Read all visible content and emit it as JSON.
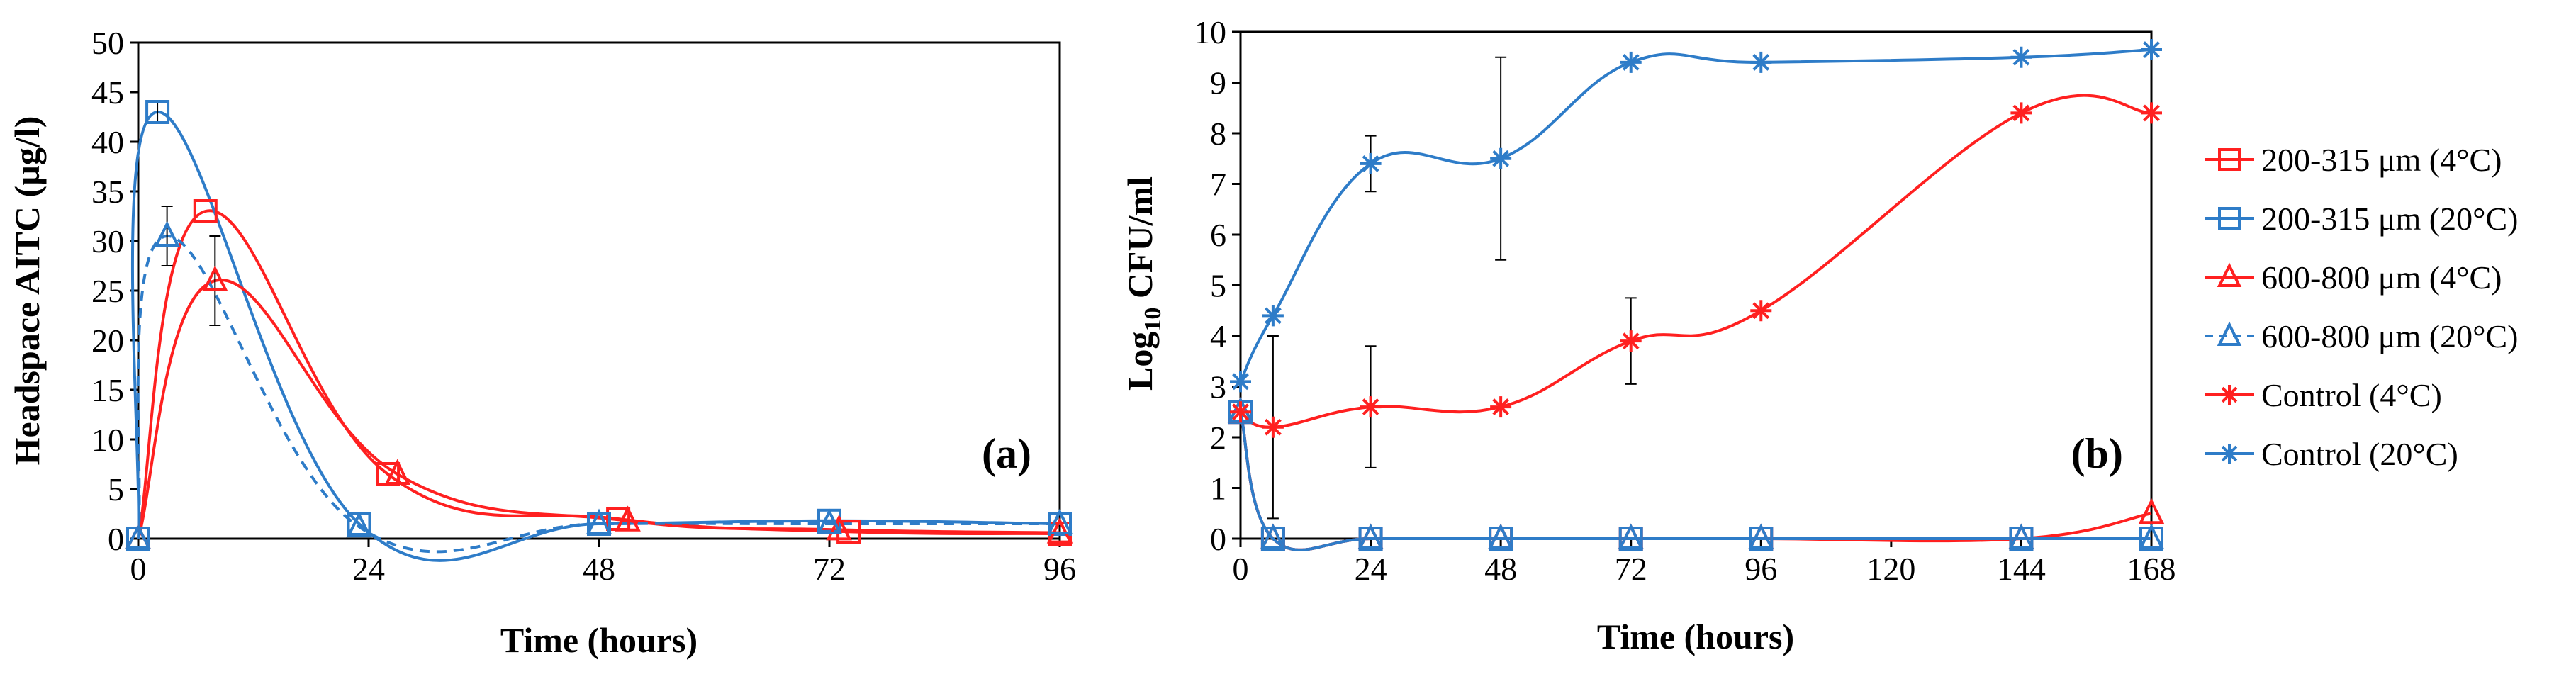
{
  "colors": {
    "red": "#ff2020",
    "blue": "#2e7cc8",
    "axis": "#000000"
  },
  "legend": {
    "labels": [
      "200-315 μm (4°C)",
      "200-315 μm (20°C)",
      "600-800 μm (4°C)",
      "600-800 μm (20°C)",
      "Control (4°C)",
      "Control (20°C)"
    ],
    "placement": "right"
  },
  "chart_data": [
    {
      "type": "line",
      "panel_label": "(a)",
      "title": "",
      "xlabel": "Time (hours)",
      "ylabel": "Headspace AITC (µg/l)",
      "xlim": [
        0,
        96
      ],
      "ylim": [
        0,
        50
      ],
      "xticks": [
        0,
        24,
        48,
        72,
        96
      ],
      "yticks": [
        0,
        5,
        10,
        15,
        20,
        25,
        30,
        35,
        40,
        45,
        50
      ],
      "xtick_labels": [
        "0",
        "24",
        "48",
        "72",
        "96"
      ],
      "ytick_labels": [
        "0",
        "5",
        "10",
        "15",
        "20",
        "25",
        "30",
        "35",
        "40",
        "45",
        "50"
      ],
      "series": [
        {
          "name": "200-315 μm (4°C)",
          "color": "red",
          "marker": "square",
          "dashed": false,
          "x": [
            0,
            7,
            26,
            50,
            74,
            96
          ],
          "y": [
            0,
            33,
            6.5,
            2,
            0.7,
            0.5
          ]
        },
        {
          "name": "200-315 μm (20°C)",
          "color": "blue",
          "marker": "square",
          "dashed": false,
          "x": [
            0,
            2,
            23,
            48,
            72,
            96
          ],
          "y": [
            0,
            43,
            1.5,
            1.5,
            1.8,
            1.5
          ]
        },
        {
          "name": "600-800 μm (4°C)",
          "color": "red",
          "marker": "triangle",
          "dashed": false,
          "x": [
            0,
            8,
            27,
            51,
            73,
            96
          ],
          "y": [
            0,
            26,
            6.5,
            1.8,
            0.9,
            0.6
          ]
        },
        {
          "name": "600-800 μm (20°C)",
          "color": "blue",
          "marker": "triangle",
          "dashed": true,
          "x": [
            0,
            3,
            23,
            48,
            72,
            96
          ],
          "y": [
            0,
            30.5,
            1.2,
            1.5,
            1.5,
            1.5
          ]
        }
      ],
      "error_bars": [
        {
          "x": 2,
          "y": 43,
          "err": 1
        },
        {
          "x": 3,
          "y": 30.5,
          "err": 3
        },
        {
          "x": 8,
          "y": 26,
          "err": 4.5
        }
      ]
    },
    {
      "type": "line",
      "panel_label": "(b)",
      "title": "",
      "xlabel": "Time (hours)",
      "ylabel": "Log10 CFU/ml",
      "ylabel_main": "Log",
      "ylabel_sub": "10",
      "ylabel_rest": " CFU/ml",
      "xlim": [
        0,
        168
      ],
      "ylim": [
        0,
        10
      ],
      "xticks": [
        0,
        24,
        48,
        72,
        96,
        120,
        144,
        168
      ],
      "yticks": [
        0,
        1,
        2,
        3,
        4,
        5,
        6,
        7,
        8,
        9,
        10
      ],
      "xtick_labels": [
        "0",
        "24",
        "48",
        "72",
        "96",
        "120",
        "144",
        "168"
      ],
      "ytick_labels": [
        "0",
        "1",
        "2",
        "3",
        "4",
        "5",
        "6",
        "7",
        "8",
        "9",
        "10"
      ],
      "series": [
        {
          "name": "200-315 μm (4°C)",
          "color": "red",
          "marker": "square",
          "dashed": false,
          "x": [
            0,
            6,
            24,
            48,
            72,
            96,
            144,
            168
          ],
          "y": [
            2.5,
            0,
            0,
            0,
            0,
            0,
            0,
            0
          ]
        },
        {
          "name": "200-315 μm (20°C)",
          "color": "blue",
          "marker": "square",
          "dashed": false,
          "x": [
            0,
            6,
            24,
            48,
            72,
            96,
            144,
            168
          ],
          "y": [
            2.5,
            0,
            0,
            0,
            0,
            0,
            0,
            0
          ]
        },
        {
          "name": "600-800 μm (4°C)",
          "color": "red",
          "marker": "triangle",
          "dashed": false,
          "x": [
            0,
            6,
            24,
            48,
            72,
            96,
            144,
            168
          ],
          "y": [
            2.5,
            0,
            0,
            0,
            0,
            0,
            0,
            0.5
          ]
        },
        {
          "name": "600-800 μm (20°C)",
          "color": "blue",
          "marker": "triangle",
          "dashed": false,
          "x": [
            0,
            6,
            24,
            48,
            72,
            96,
            144,
            168
          ],
          "y": [
            2.5,
            0,
            0,
            0,
            0,
            0,
            0,
            0
          ]
        },
        {
          "name": "Control (4°C)",
          "color": "red",
          "marker": "star",
          "dashed": false,
          "x": [
            0,
            6,
            24,
            48,
            72,
            96,
            144,
            168
          ],
          "y": [
            2.5,
            2.2,
            2.6,
            2.6,
            3.9,
            4.5,
            8.4,
            8.4
          ]
        },
        {
          "name": "Control (20°C)",
          "color": "blue",
          "marker": "star",
          "dashed": false,
          "x": [
            0,
            6,
            24,
            48,
            72,
            96,
            144,
            168
          ],
          "y": [
            3.1,
            4.4,
            7.4,
            7.5,
            9.4,
            9.4,
            9.5,
            9.65
          ]
        }
      ],
      "error_bars": [
        {
          "x": 6,
          "y": 2.2,
          "err": 1.8
        },
        {
          "x": 24,
          "y": 2.6,
          "err": 1.2
        },
        {
          "x": 24,
          "y": 7.4,
          "err": 0.55
        },
        {
          "x": 48,
          "y": 7.5,
          "err": 2.0
        },
        {
          "x": 72,
          "y": 3.9,
          "err": 0.85
        }
      ]
    }
  ]
}
